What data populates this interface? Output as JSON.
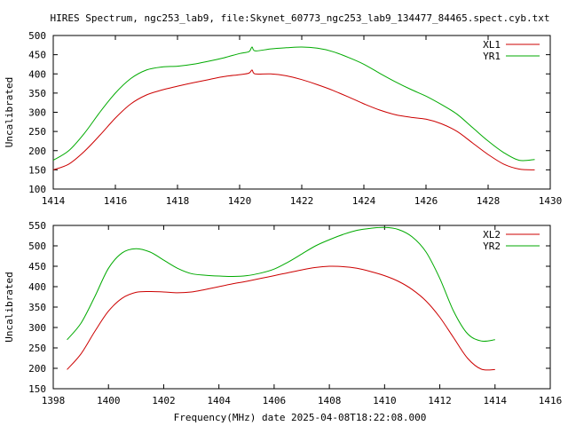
{
  "title": "HIRES Spectrum, ngc253_lab9, file:Skynet_60773_ngc253_lab9_134477_84465.spect.cyb.txt",
  "xlabel": "Frequency(MHz) date 2025-04-08T18:22:08.000",
  "colors": {
    "red": "#cc0000",
    "green": "#00aa00"
  },
  "chart_data": [
    {
      "type": "line",
      "ylabel": "Uncalibrated",
      "xlim": [
        1414,
        1430
      ],
      "ylim": [
        100,
        500
      ],
      "xticks": [
        1414,
        1416,
        1418,
        1420,
        1422,
        1424,
        1426,
        1428,
        1430
      ],
      "yticks": [
        100,
        150,
        200,
        250,
        300,
        350,
        400,
        450,
        500
      ],
      "legend_position": "top-right",
      "series": [
        {
          "name": "XL1",
          "color": "#cc0000",
          "x": [
            1414.0,
            1414.5,
            1415.0,
            1415.5,
            1416.0,
            1416.5,
            1417.0,
            1417.5,
            1418.0,
            1418.5,
            1419.0,
            1419.5,
            1420.0,
            1420.3,
            1420.4,
            1420.5,
            1421.0,
            1421.5,
            1422.0,
            1422.5,
            1423.0,
            1423.5,
            1424.0,
            1424.5,
            1425.0,
            1425.5,
            1426.0,
            1426.5,
            1427.0,
            1427.5,
            1428.0,
            1428.5,
            1429.0,
            1429.5
          ],
          "y": [
            150,
            165,
            198,
            240,
            285,
            322,
            345,
            358,
            368,
            377,
            385,
            393,
            398,
            402,
            410,
            400,
            400,
            395,
            385,
            372,
            357,
            340,
            322,
            306,
            294,
            287,
            282,
            270,
            250,
            220,
            190,
            165,
            152,
            150
          ]
        },
        {
          "name": "YR1",
          "color": "#00aa00",
          "x": [
            1414.0,
            1414.5,
            1415.0,
            1415.5,
            1416.0,
            1416.5,
            1417.0,
            1417.5,
            1418.0,
            1418.5,
            1419.0,
            1419.5,
            1420.0,
            1420.3,
            1420.4,
            1420.5,
            1421.0,
            1421.5,
            1422.0,
            1422.5,
            1423.0,
            1423.5,
            1424.0,
            1424.5,
            1425.0,
            1425.5,
            1426.0,
            1426.5,
            1427.0,
            1427.5,
            1428.0,
            1428.5,
            1429.0,
            1429.5
          ],
          "y": [
            175,
            200,
            245,
            300,
            350,
            388,
            410,
            418,
            420,
            425,
            433,
            442,
            453,
            458,
            470,
            460,
            465,
            468,
            470,
            467,
            458,
            443,
            425,
            402,
            380,
            360,
            342,
            320,
            295,
            260,
            225,
            195,
            175,
            177
          ]
        }
      ]
    },
    {
      "type": "line",
      "ylabel": "Uncalibrated",
      "xlim": [
        1398,
        1416
      ],
      "ylim": [
        150,
        550
      ],
      "xticks": [
        1398,
        1400,
        1402,
        1404,
        1406,
        1408,
        1410,
        1412,
        1414,
        1416
      ],
      "yticks": [
        150,
        200,
        250,
        300,
        350,
        400,
        450,
        500,
        550
      ],
      "legend_position": "top-right",
      "series": [
        {
          "name": "XL2",
          "color": "#cc0000",
          "x": [
            1398.5,
            1399.0,
            1399.5,
            1400.0,
            1400.5,
            1401.0,
            1401.5,
            1402.0,
            1402.5,
            1403.0,
            1403.5,
            1404.0,
            1404.5,
            1405.0,
            1405.5,
            1406.0,
            1406.5,
            1407.0,
            1407.5,
            1408.0,
            1408.5,
            1409.0,
            1409.5,
            1410.0,
            1410.5,
            1411.0,
            1411.5,
            1412.0,
            1412.5,
            1413.0,
            1413.5,
            1414.0
          ],
          "y": [
            197,
            235,
            290,
            340,
            372,
            386,
            388,
            387,
            385,
            387,
            393,
            400,
            407,
            413,
            420,
            427,
            434,
            441,
            447,
            450,
            449,
            445,
            437,
            427,
            413,
            393,
            365,
            325,
            275,
            225,
            198,
            197
          ]
        },
        {
          "name": "YR2",
          "color": "#00aa00",
          "x": [
            1398.5,
            1399.0,
            1399.5,
            1400.0,
            1400.5,
            1401.0,
            1401.5,
            1402.0,
            1402.5,
            1403.0,
            1403.5,
            1404.0,
            1404.5,
            1405.0,
            1405.5,
            1406.0,
            1406.5,
            1407.0,
            1407.5,
            1408.0,
            1408.5,
            1409.0,
            1409.5,
            1410.0,
            1410.5,
            1411.0,
            1411.5,
            1412.0,
            1412.5,
            1413.0,
            1413.5,
            1414.0
          ],
          "y": [
            270,
            310,
            375,
            445,
            483,
            493,
            485,
            465,
            445,
            432,
            428,
            426,
            425,
            427,
            433,
            443,
            460,
            480,
            500,
            515,
            528,
            538,
            543,
            545,
            540,
            522,
            485,
            420,
            340,
            285,
            267,
            270
          ]
        }
      ]
    }
  ]
}
